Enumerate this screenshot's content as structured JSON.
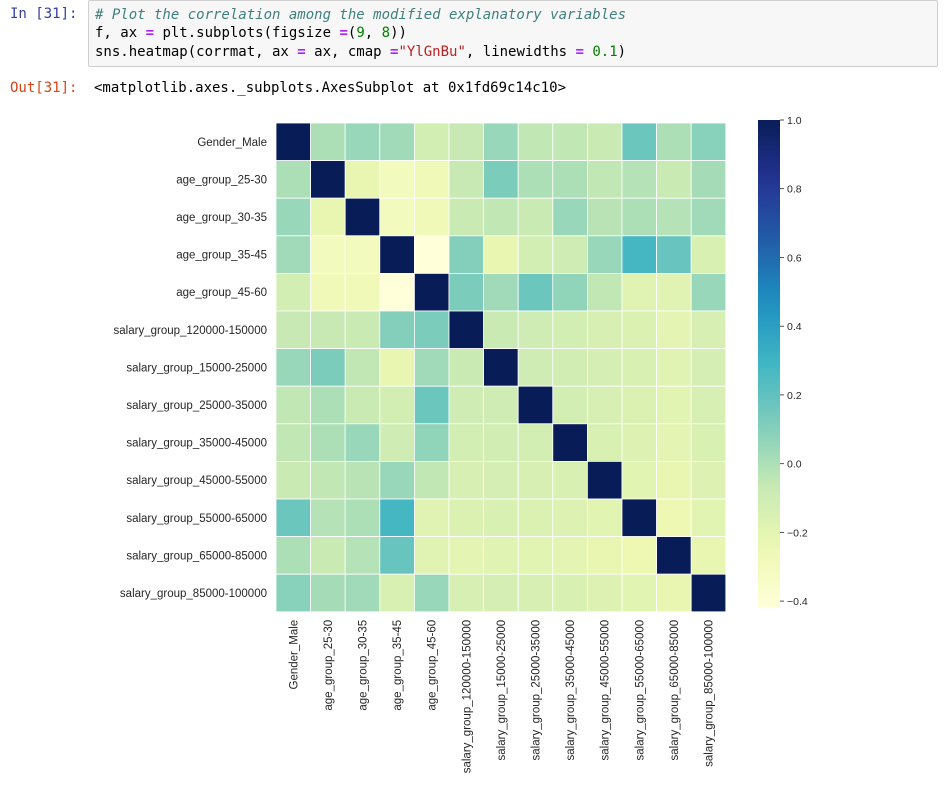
{
  "input_prompt": "In [31]:",
  "output_prompt": "Out[31]:",
  "code": {
    "line1": "# Plot the correlation among the modified explanatory variables",
    "line2_a": "f, ax ",
    "line2_eq": "=",
    "line2_b": " plt.subplots(figsize ",
    "line2_eq2": "=",
    "line2_c": "(",
    "line2_n1": "9",
    "line2_d": ", ",
    "line2_n2": "8",
    "line2_e": "))",
    "line3_a": "sns.heatmap(corrmat, ax ",
    "line3_eq": "=",
    "line3_b": " ax, cmap ",
    "line3_eq2": "=",
    "line3_str": "\"YlGnBu\"",
    "line3_c": ", linewidths ",
    "line3_eq3": "=",
    "line3_d": " ",
    "line3_num": "0.1",
    "line3_e": ")"
  },
  "output_text": "<matplotlib.axes._subplots.AxesSubplot at 0x1fd69c14c10>",
  "colors": {
    "input_prompt": "#303f9f",
    "output_prompt": "#d84315",
    "cell_border": "#cfcfcf",
    "cell_background": "#f7f7f7"
  },
  "chart_data": {
    "type": "heatmap",
    "colormap": "YlGnBu",
    "linewidths": 0.1,
    "labels": [
      "Gender_Male",
      "age_group_25-30",
      "age_group_30-35",
      "age_group_35-45",
      "age_group_45-60",
      "salary_group_120000-150000",
      "salary_group_15000-25000",
      "salary_group_25000-35000",
      "salary_group_35000-45000",
      "salary_group_45000-55000",
      "salary_group_55000-65000",
      "salary_group_65000-85000",
      "salary_group_85000-100000"
    ],
    "matrix": [
      [
        1.0,
        0.0,
        0.05,
        0.03,
        -0.12,
        -0.07,
        0.05,
        -0.05,
        -0.05,
        -0.08,
        0.17,
        0.0,
        0.09
      ],
      [
        0.0,
        1.0,
        -0.22,
        -0.3,
        -0.28,
        -0.07,
        0.12,
        0.0,
        0.0,
        -0.05,
        -0.02,
        -0.08,
        0.02
      ],
      [
        0.05,
        -0.22,
        1.0,
        -0.3,
        -0.28,
        -0.08,
        -0.05,
        -0.08,
        0.05,
        -0.03,
        0.0,
        -0.02,
        0.03
      ],
      [
        0.03,
        -0.3,
        -0.3,
        1.0,
        -0.42,
        0.1,
        -0.22,
        -0.12,
        -0.1,
        0.05,
        0.28,
        0.18,
        -0.15
      ],
      [
        -0.12,
        -0.28,
        -0.28,
        -0.42,
        1.0,
        0.12,
        0.03,
        0.17,
        0.07,
        -0.05,
        -0.18,
        -0.18,
        0.05
      ],
      [
        -0.07,
        -0.07,
        -0.08,
        0.1,
        0.12,
        1.0,
        -0.08,
        -0.1,
        -0.12,
        -0.14,
        -0.16,
        -0.2,
        -0.14
      ],
      [
        0.05,
        0.12,
        -0.05,
        -0.22,
        0.03,
        -0.08,
        1.0,
        -0.1,
        -0.11,
        -0.13,
        -0.15,
        -0.18,
        -0.13
      ],
      [
        -0.05,
        0.0,
        -0.08,
        -0.12,
        0.17,
        -0.1,
        -0.1,
        1.0,
        -0.12,
        -0.14,
        -0.16,
        -0.19,
        -0.14
      ],
      [
        -0.05,
        0.0,
        0.05,
        -0.1,
        0.07,
        -0.12,
        -0.11,
        -0.12,
        1.0,
        -0.15,
        -0.17,
        -0.2,
        -0.15
      ],
      [
        -0.08,
        -0.05,
        -0.03,
        0.05,
        -0.05,
        -0.14,
        -0.13,
        -0.14,
        -0.15,
        1.0,
        -0.19,
        -0.22,
        -0.17
      ],
      [
        0.17,
        -0.02,
        0.0,
        0.28,
        -0.18,
        -0.16,
        -0.15,
        -0.16,
        -0.17,
        -0.19,
        1.0,
        -0.25,
        -0.19
      ],
      [
        0.0,
        -0.08,
        -0.02,
        0.18,
        -0.18,
        -0.2,
        -0.18,
        -0.19,
        -0.2,
        -0.22,
        -0.25,
        1.0,
        -0.22
      ],
      [
        0.09,
        0.02,
        0.03,
        -0.15,
        0.05,
        -0.14,
        -0.13,
        -0.14,
        -0.15,
        -0.17,
        -0.19,
        -0.22,
        1.0
      ]
    ],
    "colorbar": {
      "vmin": -0.42,
      "vmax": 1.0,
      "ticks": [
        1.0,
        0.8,
        0.6,
        0.4,
        0.2,
        0.0,
        -0.2,
        -0.4
      ],
      "tick_labels": [
        "1.0",
        "0.8",
        "0.6",
        "0.4",
        "0.2",
        "0.0",
        "−0.2",
        "−0.4"
      ]
    }
  }
}
